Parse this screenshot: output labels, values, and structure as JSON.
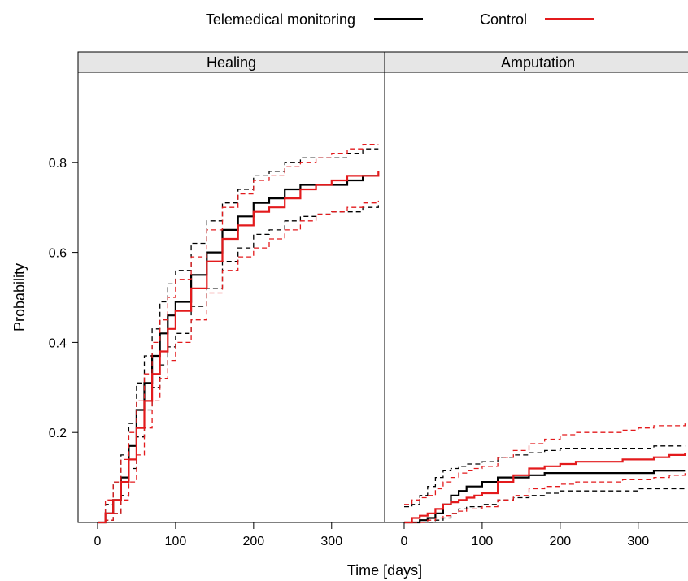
{
  "legend": {
    "items": [
      {
        "label": "Telemedical monitoring",
        "color": "#000000"
      },
      {
        "label": "Control",
        "color": "#e31a1c"
      }
    ]
  },
  "chart_data": {
    "type": "line",
    "title": "",
    "xlabel": "Time [days]",
    "ylabel": "Probability",
    "xlim": [
      -25,
      368
    ],
    "ylim": [
      0,
      1.0
    ],
    "x_ticks": [
      0,
      100,
      200,
      300
    ],
    "y_ticks": [
      0.2,
      0.4,
      0.6,
      0.8
    ],
    "legend_position": "top",
    "grid": false,
    "line_styles": {
      "estimate": "solid",
      "confidence_band": "dashed"
    },
    "panels": [
      {
        "strip_label": "Healing",
        "series": [
          {
            "name": "Telemedical monitoring",
            "color": "#000000",
            "x": [
              0,
              10,
              20,
              30,
              40,
              50,
              60,
              70,
              80,
              90,
              100,
              120,
              140,
              160,
              180,
              200,
              220,
              240,
              260,
              280,
              300,
              320,
              340,
              360
            ],
            "y": [
              0,
              0.02,
              0.05,
              0.1,
              0.17,
              0.25,
              0.31,
              0.37,
              0.42,
              0.46,
              0.49,
              0.55,
              0.6,
              0.65,
              0.68,
              0.71,
              0.72,
              0.74,
              0.75,
              0.75,
              0.75,
              0.76,
              0.77,
              0.77
            ],
            "lower": [
              0,
              0.005,
              0.02,
              0.06,
              0.12,
              0.19,
              0.25,
              0.3,
              0.35,
              0.39,
              0.42,
              0.48,
              0.52,
              0.58,
              0.61,
              0.64,
              0.65,
              0.67,
              0.68,
              0.685,
              0.69,
              0.69,
              0.7,
              0.705
            ],
            "upper": [
              0,
              0.04,
              0.09,
              0.15,
              0.22,
              0.31,
              0.37,
              0.43,
              0.49,
              0.53,
              0.56,
              0.62,
              0.67,
              0.71,
              0.74,
              0.77,
              0.78,
              0.8,
              0.81,
              0.81,
              0.81,
              0.82,
              0.83,
              0.83
            ]
          },
          {
            "name": "Control",
            "color": "#e31a1c",
            "x": [
              0,
              10,
              20,
              30,
              40,
              50,
              60,
              70,
              80,
              90,
              100,
              120,
              140,
              160,
              180,
              200,
              220,
              240,
              260,
              280,
              300,
              320,
              340,
              360
            ],
            "y": [
              0,
              0.02,
              0.05,
              0.09,
              0.14,
              0.21,
              0.27,
              0.33,
              0.38,
              0.43,
              0.47,
              0.52,
              0.58,
              0.63,
              0.66,
              0.69,
              0.7,
              0.72,
              0.74,
              0.75,
              0.76,
              0.77,
              0.77,
              0.78
            ],
            "lower": [
              0,
              0.005,
              0.02,
              0.05,
              0.09,
              0.15,
              0.21,
              0.27,
              0.32,
              0.36,
              0.4,
              0.45,
              0.51,
              0.56,
              0.59,
              0.61,
              0.63,
              0.65,
              0.67,
              0.685,
              0.69,
              0.7,
              0.71,
              0.715
            ],
            "upper": [
              0,
              0.05,
              0.09,
              0.14,
              0.2,
              0.27,
              0.33,
              0.4,
              0.45,
              0.5,
              0.54,
              0.59,
              0.65,
              0.7,
              0.73,
              0.76,
              0.77,
              0.79,
              0.8,
              0.81,
              0.82,
              0.83,
              0.84,
              0.84
            ]
          }
        ]
      },
      {
        "strip_label": "Amputation",
        "series": [
          {
            "name": "Telemedical monitoring",
            "color": "#000000",
            "x": [
              0,
              10,
              20,
              30,
              40,
              50,
              60,
              70,
              80,
              90,
              100,
              120,
              140,
              160,
              180,
              200,
              220,
              240,
              260,
              280,
              300,
              320,
              340,
              360
            ],
            "y": [
              0,
              0,
              0.005,
              0.01,
              0.02,
              0.04,
              0.06,
              0.07,
              0.08,
              0.08,
              0.09,
              0.1,
              0.1,
              0.105,
              0.11,
              0.11,
              0.11,
              0.11,
              0.11,
              0.11,
              0.11,
              0.115,
              0.115,
              0.115
            ],
            "lower": [
              0,
              0,
              0,
              0,
              0.005,
              0.01,
              0.02,
              0.03,
              0.035,
              0.035,
              0.04,
              0.05,
              0.055,
              0.06,
              0.065,
              0.07,
              0.07,
              0.07,
              0.07,
              0.07,
              0.075,
              0.075,
              0.075,
              0.075
            ],
            "upper": [
              0.035,
              0.04,
              0.06,
              0.08,
              0.1,
              0.115,
              0.12,
              0.125,
              0.13,
              0.13,
              0.135,
              0.145,
              0.15,
              0.155,
              0.16,
              0.165,
              0.165,
              0.165,
              0.165,
              0.165,
              0.165,
              0.17,
              0.17,
              0.17
            ]
          },
          {
            "name": "Control",
            "color": "#e31a1c",
            "x": [
              0,
              10,
              20,
              30,
              40,
              50,
              60,
              70,
              80,
              90,
              100,
              120,
              140,
              160,
              180,
              200,
              220,
              240,
              260,
              280,
              300,
              320,
              340,
              360
            ],
            "y": [
              0,
              0.01,
              0.015,
              0.02,
              0.03,
              0.04,
              0.045,
              0.05,
              0.055,
              0.06,
              0.065,
              0.09,
              0.105,
              0.12,
              0.125,
              0.13,
              0.135,
              0.135,
              0.135,
              0.14,
              0.14,
              0.145,
              0.15,
              0.155
            ],
            "lower": [
              0,
              0,
              0,
              0.005,
              0.01,
              0.015,
              0.02,
              0.025,
              0.03,
              0.03,
              0.035,
              0.05,
              0.06,
              0.075,
              0.08,
              0.085,
              0.09,
              0.09,
              0.09,
              0.095,
              0.095,
              0.1,
              0.105,
              0.11
            ],
            "upper": [
              0.04,
              0.05,
              0.055,
              0.06,
              0.075,
              0.09,
              0.1,
              0.11,
              0.115,
              0.12,
              0.125,
              0.145,
              0.16,
              0.175,
              0.185,
              0.195,
              0.2,
              0.2,
              0.2,
              0.205,
              0.21,
              0.215,
              0.215,
              0.22
            ]
          }
        ]
      }
    ]
  }
}
